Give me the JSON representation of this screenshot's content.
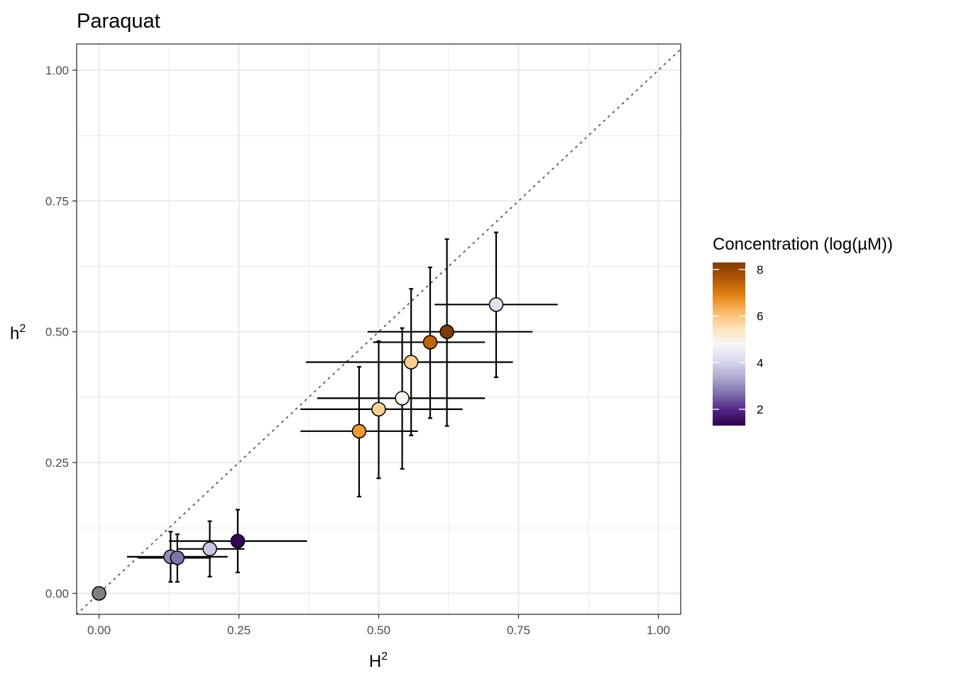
{
  "chart_data": {
    "type": "scatter",
    "title": "Paraquat",
    "xlabel": {
      "base": "H",
      "sup": "2"
    },
    "ylabel": {
      "base": "h",
      "sup": "2"
    },
    "xlim": [
      -0.04,
      1.04
    ],
    "ylim": [
      -0.04,
      1.05
    ],
    "x_ticks": [
      0.0,
      0.25,
      0.5,
      0.75,
      1.0
    ],
    "x_tick_labels": [
      "0.00",
      "0.25",
      "0.50",
      "0.75",
      "1.00"
    ],
    "y_ticks": [
      0.0,
      0.25,
      0.5,
      0.75,
      1.0
    ],
    "y_tick_labels": [
      "0.00",
      "0.25",
      "0.50",
      "0.75",
      "1.00"
    ],
    "grid": true,
    "reference_line": "y = x (dotted)",
    "legend": {
      "title": "Concentration (log(µM))",
      "position": "right",
      "range": [
        1.3,
        8.3
      ],
      "ticks": [
        2,
        4,
        6,
        8
      ],
      "tick_labels": [
        "2",
        "4",
        "6",
        "8"
      ],
      "colors": [
        "#2d004b",
        "#542788",
        "#8073ac",
        "#b2abd2",
        "#d8daeb",
        "#f7f7f7",
        "#fee0b6",
        "#fdb863",
        "#e08214",
        "#b35806",
        "#7f3b08"
      ]
    },
    "na_color": "#7f7f7f",
    "points": [
      {
        "H2": 0.0,
        "h2": 0.0,
        "H2_lo": null,
        "H2_hi": null,
        "h2_lo": null,
        "h2_hi": null,
        "conc": null
      },
      {
        "H2": 0.128,
        "h2": 0.07,
        "H2_lo": 0.05,
        "H2_hi": 0.23,
        "h2_lo": 0.022,
        "h2_hi": 0.118,
        "conc": 3.0
      },
      {
        "H2": 0.14,
        "h2": 0.068,
        "H2_lo": 0.07,
        "H2_hi": 0.2,
        "h2_lo": 0.022,
        "h2_hi": 0.113,
        "conc": 2.7
      },
      {
        "H2": 0.198,
        "h2": 0.085,
        "H2_lo": 0.14,
        "H2_hi": 0.26,
        "h2_lo": 0.032,
        "h2_hi": 0.138,
        "conc": 3.8
      },
      {
        "H2": 0.248,
        "h2": 0.1,
        "H2_lo": 0.125,
        "H2_hi": 0.372,
        "h2_lo": 0.04,
        "h2_hi": 0.16,
        "conc": 1.4
      },
      {
        "H2": 0.465,
        "h2": 0.31,
        "H2_lo": 0.36,
        "H2_hi": 0.57,
        "h2_lo": 0.185,
        "h2_hi": 0.433,
        "conc": 6.6
      },
      {
        "H2": 0.5,
        "h2": 0.352,
        "H2_lo": 0.36,
        "H2_hi": 0.65,
        "h2_lo": 0.22,
        "h2_hi": 0.482,
        "conc": 5.8
      },
      {
        "H2": 0.542,
        "h2": 0.373,
        "H2_lo": 0.39,
        "H2_hi": 0.69,
        "h2_lo": 0.238,
        "h2_hi": 0.507,
        "conc": 4.9
      },
      {
        "H2": 0.558,
        "h2": 0.442,
        "H2_lo": 0.37,
        "H2_hi": 0.74,
        "h2_lo": 0.302,
        "h2_hi": 0.582,
        "conc": 5.8
      },
      {
        "H2": 0.592,
        "h2": 0.48,
        "H2_lo": 0.49,
        "H2_hi": 0.69,
        "h2_lo": 0.335,
        "h2_hi": 0.623,
        "conc": 7.4
      },
      {
        "H2": 0.622,
        "h2": 0.5,
        "H2_lo": 0.48,
        "H2_hi": 0.775,
        "h2_lo": 0.32,
        "h2_hi": 0.677,
        "conc": 8.3
      },
      {
        "H2": 0.71,
        "h2": 0.552,
        "H2_lo": 0.6,
        "H2_hi": 0.82,
        "h2_lo": 0.413,
        "h2_hi": 0.69,
        "conc": 4.3
      }
    ]
  }
}
